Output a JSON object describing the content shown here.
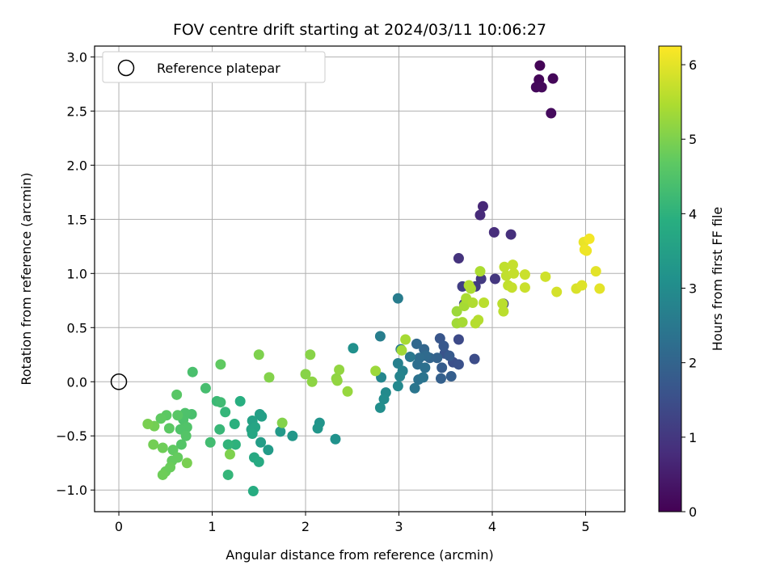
{
  "chart_data": {
    "type": "scatter",
    "title": "FOV centre drift starting at 2024/03/11 10:06:27",
    "xlabel": "Angular distance from reference (arcmin)",
    "ylabel": "Rotation from reference (arcmin)",
    "xlim": [
      -0.26,
      5.42
    ],
    "ylim": [
      -1.2,
      3.1
    ],
    "xticks": [
      0,
      1,
      2,
      3,
      4,
      5
    ],
    "yticks": [
      -1.0,
      -0.5,
      0.0,
      0.5,
      1.0,
      1.5,
      2.0,
      2.5,
      3.0
    ],
    "grid": true,
    "legend": {
      "position": "top-left",
      "entries": [
        "Reference platepar"
      ]
    },
    "reference_point": {
      "x": 0,
      "y": 0
    },
    "colorbar": {
      "label": "Hours from first FF file",
      "range": [
        0,
        6.25
      ],
      "ticks": [
        0,
        1,
        2,
        3,
        4,
        5,
        6
      ],
      "colormap": "viridis"
    },
    "points": [
      {
        "x": 4.51,
        "y": 2.92,
        "h": 0.05
      },
      {
        "x": 4.5,
        "y": 2.79,
        "h": 0.08
      },
      {
        "x": 4.65,
        "y": 2.8,
        "h": 0.1
      },
      {
        "x": 4.47,
        "y": 2.72,
        "h": 0.12
      },
      {
        "x": 4.53,
        "y": 2.72,
        "h": 0.15
      },
      {
        "x": 4.63,
        "y": 2.48,
        "h": 0.18
      },
      {
        "x": 3.9,
        "y": 1.62,
        "h": 0.7
      },
      {
        "x": 3.87,
        "y": 1.54,
        "h": 0.75
      },
      {
        "x": 4.02,
        "y": 1.38,
        "h": 0.8
      },
      {
        "x": 4.2,
        "y": 1.36,
        "h": 0.85
      },
      {
        "x": 3.64,
        "y": 1.14,
        "h": 0.9
      },
      {
        "x": 4.03,
        "y": 0.95,
        "h": 1.0
      },
      {
        "x": 3.88,
        "y": 0.95,
        "h": 1.05
      },
      {
        "x": 3.82,
        "y": 0.88,
        "h": 1.1
      },
      {
        "x": 3.68,
        "y": 0.88,
        "h": 1.15
      },
      {
        "x": 3.75,
        "y": 0.88,
        "h": 1.2
      },
      {
        "x": 3.7,
        "y": 0.72,
        "h": 1.25
      },
      {
        "x": 4.12,
        "y": 0.72,
        "h": 1.3
      },
      {
        "x": 3.64,
        "y": 0.39,
        "h": 1.4
      },
      {
        "x": 3.81,
        "y": 0.21,
        "h": 1.45
      },
      {
        "x": 3.58,
        "y": 0.18,
        "h": 1.5
      },
      {
        "x": 3.64,
        "y": 0.16,
        "h": 1.55
      },
      {
        "x": 3.49,
        "y": 0.26,
        "h": 1.6
      },
      {
        "x": 3.44,
        "y": 0.4,
        "h": 1.65
      },
      {
        "x": 3.48,
        "y": 0.33,
        "h": 1.7
      },
      {
        "x": 3.54,
        "y": 0.24,
        "h": 1.75
      },
      {
        "x": 3.46,
        "y": 0.13,
        "h": 1.8
      },
      {
        "x": 3.56,
        "y": 0.05,
        "h": 1.85
      },
      {
        "x": 3.45,
        "y": 0.03,
        "h": 1.9
      },
      {
        "x": 3.41,
        "y": 0.22,
        "h": 1.95
      },
      {
        "x": 3.33,
        "y": 0.22,
        "h": 2.0
      },
      {
        "x": 3.27,
        "y": 0.3,
        "h": 2.05
      },
      {
        "x": 3.19,
        "y": 0.35,
        "h": 2.1
      },
      {
        "x": 3.29,
        "y": 0.24,
        "h": 2.15
      },
      {
        "x": 3.22,
        "y": 0.22,
        "h": 2.2
      },
      {
        "x": 3.2,
        "y": 0.16,
        "h": 2.25
      },
      {
        "x": 3.28,
        "y": 0.13,
        "h": 2.3
      },
      {
        "x": 3.21,
        "y": 0.02,
        "h": 2.35
      },
      {
        "x": 3.26,
        "y": 0.04,
        "h": 2.4
      },
      {
        "x": 3.17,
        "y": -0.06,
        "h": 2.45
      },
      {
        "x": 3.12,
        "y": 0.23,
        "h": 2.5
      },
      {
        "x": 3.02,
        "y": 0.3,
        "h": 2.55
      },
      {
        "x": 2.99,
        "y": 0.77,
        "h": 2.6
      },
      {
        "x": 2.8,
        "y": 0.42,
        "h": 2.65
      },
      {
        "x": 2.99,
        "y": 0.17,
        "h": 2.7
      },
      {
        "x": 3.04,
        "y": 0.1,
        "h": 2.75
      },
      {
        "x": 3.01,
        "y": 0.05,
        "h": 2.8
      },
      {
        "x": 2.81,
        "y": 0.04,
        "h": 2.85
      },
      {
        "x": 2.99,
        "y": -0.04,
        "h": 2.9
      },
      {
        "x": 2.86,
        "y": -0.1,
        "h": 2.95
      },
      {
        "x": 2.84,
        "y": -0.16,
        "h": 3.0
      },
      {
        "x": 2.8,
        "y": -0.24,
        "h": 3.05
      },
      {
        "x": 2.51,
        "y": 0.31,
        "h": 3.1
      },
      {
        "x": 2.32,
        "y": -0.53,
        "h": 3.15
      },
      {
        "x": 2.15,
        "y": -0.38,
        "h": 3.2
      },
      {
        "x": 2.13,
        "y": -0.43,
        "h": 3.25
      },
      {
        "x": 1.86,
        "y": -0.5,
        "h": 3.3
      },
      {
        "x": 1.73,
        "y": -0.46,
        "h": 3.35
      },
      {
        "x": 1.6,
        "y": -0.63,
        "h": 3.4
      },
      {
        "x": 1.52,
        "y": -0.56,
        "h": 3.45
      },
      {
        "x": 1.51,
        "y": -0.3,
        "h": 3.5
      },
      {
        "x": 1.53,
        "y": -0.32,
        "h": 3.5
      },
      {
        "x": 1.43,
        "y": -0.36,
        "h": 3.55
      },
      {
        "x": 1.42,
        "y": -0.44,
        "h": 3.6
      },
      {
        "x": 1.46,
        "y": -0.42,
        "h": 3.65
      },
      {
        "x": 1.43,
        "y": -0.48,
        "h": 3.7
      },
      {
        "x": 1.45,
        "y": -0.7,
        "h": 3.75
      },
      {
        "x": 1.5,
        "y": -0.74,
        "h": 3.8
      },
      {
        "x": 1.44,
        "y": -1.01,
        "h": 3.85
      },
      {
        "x": 1.3,
        "y": -0.18,
        "h": 3.9
      },
      {
        "x": 1.24,
        "y": -0.39,
        "h": 3.95
      },
      {
        "x": 1.25,
        "y": -0.58,
        "h": 4.0
      },
      {
        "x": 1.17,
        "y": -0.58,
        "h": 4.05
      },
      {
        "x": 1.17,
        "y": -0.86,
        "h": 4.1
      },
      {
        "x": 1.14,
        "y": -0.28,
        "h": 4.1
      },
      {
        "x": 1.08,
        "y": -0.44,
        "h": 4.15
      },
      {
        "x": 1.05,
        "y": -0.18,
        "h": 4.2
      },
      {
        "x": 1.09,
        "y": -0.19,
        "h": 4.25
      },
      {
        "x": 0.98,
        "y": -0.56,
        "h": 4.3
      },
      {
        "x": 0.93,
        "y": -0.06,
        "h": 4.35
      },
      {
        "x": 0.79,
        "y": 0.09,
        "h": 4.4
      },
      {
        "x": 0.78,
        "y": -0.3,
        "h": 4.4
      },
      {
        "x": 0.71,
        "y": -0.29,
        "h": 4.45
      },
      {
        "x": 0.69,
        "y": -0.35,
        "h": 4.45
      },
      {
        "x": 0.73,
        "y": -0.42,
        "h": 4.5
      },
      {
        "x": 0.66,
        "y": -0.44,
        "h": 4.5
      },
      {
        "x": 0.72,
        "y": -0.5,
        "h": 4.55
      },
      {
        "x": 0.67,
        "y": -0.58,
        "h": 4.55
      },
      {
        "x": 0.63,
        "y": -0.31,
        "h": 4.6
      },
      {
        "x": 0.62,
        "y": -0.12,
        "h": 4.6
      },
      {
        "x": 0.54,
        "y": -0.43,
        "h": 4.65
      },
      {
        "x": 0.51,
        "y": -0.31,
        "h": 4.65
      },
      {
        "x": 0.45,
        "y": -0.34,
        "h": 4.7
      },
      {
        "x": 0.58,
        "y": -0.63,
        "h": 4.7
      },
      {
        "x": 0.57,
        "y": -0.73,
        "h": 4.75
      },
      {
        "x": 0.63,
        "y": -0.7,
        "h": 4.75
      },
      {
        "x": 0.55,
        "y": -0.79,
        "h": 4.8
      },
      {
        "x": 0.5,
        "y": -0.83,
        "h": 4.8
      },
      {
        "x": 0.47,
        "y": -0.86,
        "h": 4.85
      },
      {
        "x": 0.47,
        "y": -0.61,
        "h": 4.85
      },
      {
        "x": 0.37,
        "y": -0.58,
        "h": 4.9
      },
      {
        "x": 0.38,
        "y": -0.41,
        "h": 4.9
      },
      {
        "x": 0.31,
        "y": -0.39,
        "h": 4.95
      },
      {
        "x": 0.73,
        "y": -0.75,
        "h": 4.95
      },
      {
        "x": 1.09,
        "y": 0.16,
        "h": 4.7
      },
      {
        "x": 1.19,
        "y": -0.67,
        "h": 5.0
      },
      {
        "x": 1.5,
        "y": 0.25,
        "h": 5.0
      },
      {
        "x": 1.61,
        "y": 0.04,
        "h": 5.05
      },
      {
        "x": 1.75,
        "y": -0.38,
        "h": 5.05
      },
      {
        "x": 2.0,
        "y": 0.07,
        "h": 5.1
      },
      {
        "x": 2.05,
        "y": 0.25,
        "h": 5.1
      },
      {
        "x": 2.07,
        "y": 0.0,
        "h": 5.15
      },
      {
        "x": 2.33,
        "y": 0.03,
        "h": 5.15
      },
      {
        "x": 2.36,
        "y": 0.11,
        "h": 5.2
      },
      {
        "x": 2.34,
        "y": 0.01,
        "h": 5.2
      },
      {
        "x": 2.45,
        "y": -0.09,
        "h": 5.25
      },
      {
        "x": 2.75,
        "y": 0.1,
        "h": 5.3
      },
      {
        "x": 3.03,
        "y": 0.29,
        "h": 5.35
      },
      {
        "x": 3.07,
        "y": 0.39,
        "h": 5.4
      },
      {
        "x": 3.62,
        "y": 0.65,
        "h": 5.3
      },
      {
        "x": 3.62,
        "y": 0.54,
        "h": 5.35
      },
      {
        "x": 3.68,
        "y": 0.55,
        "h": 5.4
      },
      {
        "x": 3.7,
        "y": 0.7,
        "h": 5.4
      },
      {
        "x": 3.72,
        "y": 0.77,
        "h": 5.45
      },
      {
        "x": 3.77,
        "y": 0.86,
        "h": 5.45
      },
      {
        "x": 3.75,
        "y": 0.89,
        "h": 5.5
      },
      {
        "x": 3.79,
        "y": 0.73,
        "h": 5.5
      },
      {
        "x": 3.82,
        "y": 0.54,
        "h": 5.55
      },
      {
        "x": 3.85,
        "y": 0.57,
        "h": 5.55
      },
      {
        "x": 3.87,
        "y": 1.02,
        "h": 5.45
      },
      {
        "x": 3.91,
        "y": 0.73,
        "h": 5.6
      },
      {
        "x": 4.11,
        "y": 0.72,
        "h": 5.6
      },
      {
        "x": 4.12,
        "y": 0.65,
        "h": 5.6
      },
      {
        "x": 4.13,
        "y": 1.06,
        "h": 5.65
      },
      {
        "x": 4.15,
        "y": 0.98,
        "h": 5.65
      },
      {
        "x": 4.17,
        "y": 0.89,
        "h": 5.65
      },
      {
        "x": 4.21,
        "y": 0.87,
        "h": 5.7
      },
      {
        "x": 4.22,
        "y": 1.08,
        "h": 5.7
      },
      {
        "x": 4.23,
        "y": 1.0,
        "h": 5.7
      },
      {
        "x": 4.35,
        "y": 0.99,
        "h": 5.75
      },
      {
        "x": 4.35,
        "y": 0.87,
        "h": 5.75
      },
      {
        "x": 4.57,
        "y": 0.97,
        "h": 5.8
      },
      {
        "x": 4.69,
        "y": 0.83,
        "h": 5.85
      },
      {
        "x": 4.9,
        "y": 0.86,
        "h": 5.9
      },
      {
        "x": 4.96,
        "y": 0.89,
        "h": 5.95
      },
      {
        "x": 4.98,
        "y": 1.29,
        "h": 6.05
      },
      {
        "x": 4.99,
        "y": 1.22,
        "h": 6.1
      },
      {
        "x": 5.01,
        "y": 1.21,
        "h": 6.1
      },
      {
        "x": 5.04,
        "y": 1.32,
        "h": 6.15
      },
      {
        "x": 5.11,
        "y": 1.02,
        "h": 6.0
      },
      {
        "x": 5.15,
        "y": 0.86,
        "h": 6.0
      }
    ]
  }
}
